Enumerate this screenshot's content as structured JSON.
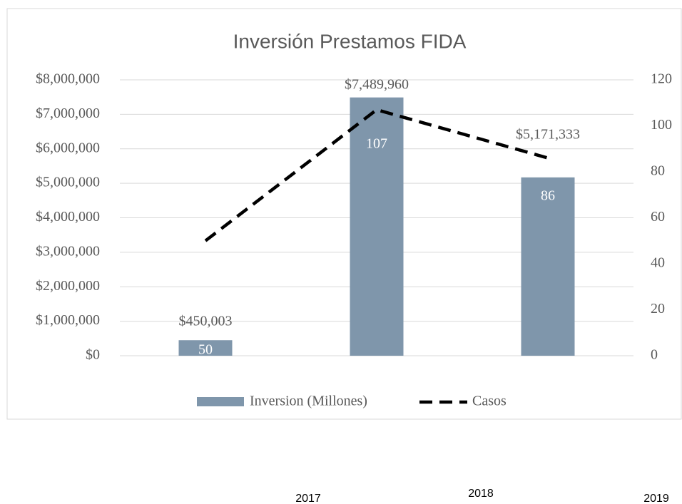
{
  "chart_data": {
    "type": "bar",
    "title": "Inversión Prestamos FIDA",
    "categories": [
      "2017",
      "2018",
      "2019"
    ],
    "series": [
      {
        "name": "Inversion (Millones)",
        "color": "#7f96ab",
        "values": [
          450003,
          7489960,
          5171333
        ],
        "value_labels": [
          "$450,003",
          "$7,489,960",
          "$5,171,333"
        ]
      },
      {
        "name": "Casos",
        "type": "line",
        "axis": "y2",
        "color": "#000000",
        "values": [
          50,
          107,
          86
        ]
      }
    ],
    "ylim": [
      0,
      8000000
    ],
    "yticks": [
      {
        "value": 0,
        "label": "$0"
      },
      {
        "value": 1000000,
        "label": "$1,000,000"
      },
      {
        "value": 2000000,
        "label": "$2,000,000"
      },
      {
        "value": 3000000,
        "label": "$3,000,000"
      },
      {
        "value": 4000000,
        "label": "$4,000,000"
      },
      {
        "value": 5000000,
        "label": "$5,000,000"
      },
      {
        "value": 6000000,
        "label": "$6,000,000"
      },
      {
        "value": 7000000,
        "label": "$7,000,000"
      },
      {
        "value": 8000000,
        "label": "$8,000,000"
      }
    ],
    "y2lim": [
      0,
      120
    ],
    "y2ticks": [
      0,
      20,
      40,
      60,
      80,
      100,
      120
    ],
    "grid": true,
    "legend": "bottom"
  }
}
